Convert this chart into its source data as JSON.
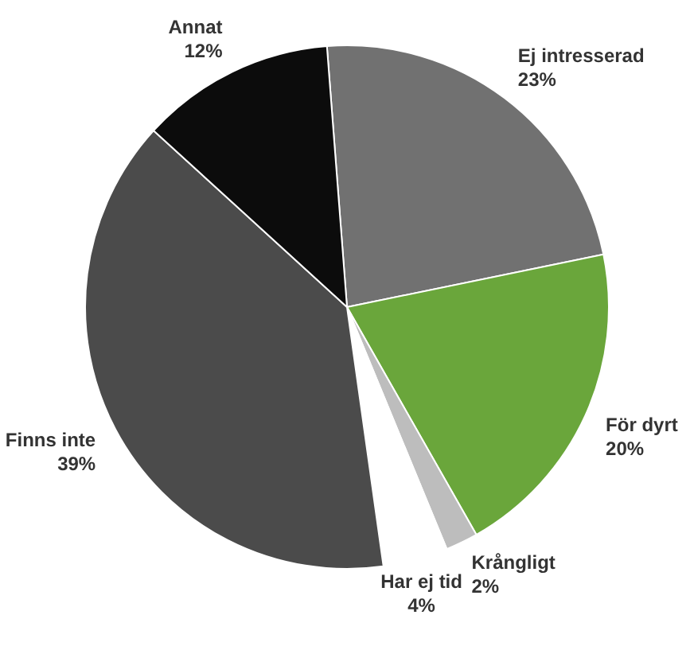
{
  "chart_data": {
    "type": "pie",
    "categories": [
      "Ej intresserad",
      "För dyrt",
      "Krångligt",
      "Har ej tid",
      "Finns inte",
      "Annat"
    ],
    "values": [
      23,
      20,
      2,
      4,
      39,
      12
    ],
    "value_labels": [
      "23%",
      "20%",
      "2%",
      "4%",
      "39%",
      "12%"
    ],
    "colors": [
      "#717171",
      "#6aa63b",
      "#bdbdbd",
      "#ffffff",
      "#4b4b4b",
      "#0c0c0c"
    ],
    "legend": false
  }
}
